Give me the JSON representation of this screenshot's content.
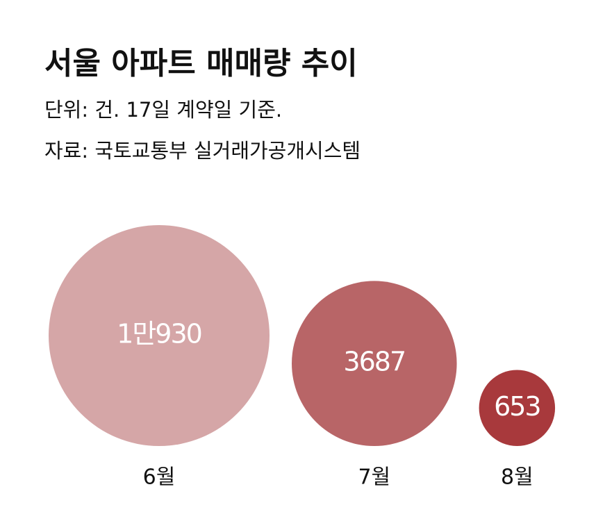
{
  "chart_data": {
    "type": "bubble",
    "title": "서울 아파트 매매량 추이",
    "subtitle": "단위: 건. 17일 계약일 기준.",
    "source": "자료: 국토교통부 실거래가공개시스템",
    "categories": [
      "6월",
      "7월",
      "8월"
    ],
    "values": [
      10930,
      3687,
      653
    ],
    "value_labels": [
      "1만930",
      "3687",
      "653"
    ],
    "colors": [
      "#d5a6a7",
      "#b86567",
      "#a8393c"
    ]
  }
}
